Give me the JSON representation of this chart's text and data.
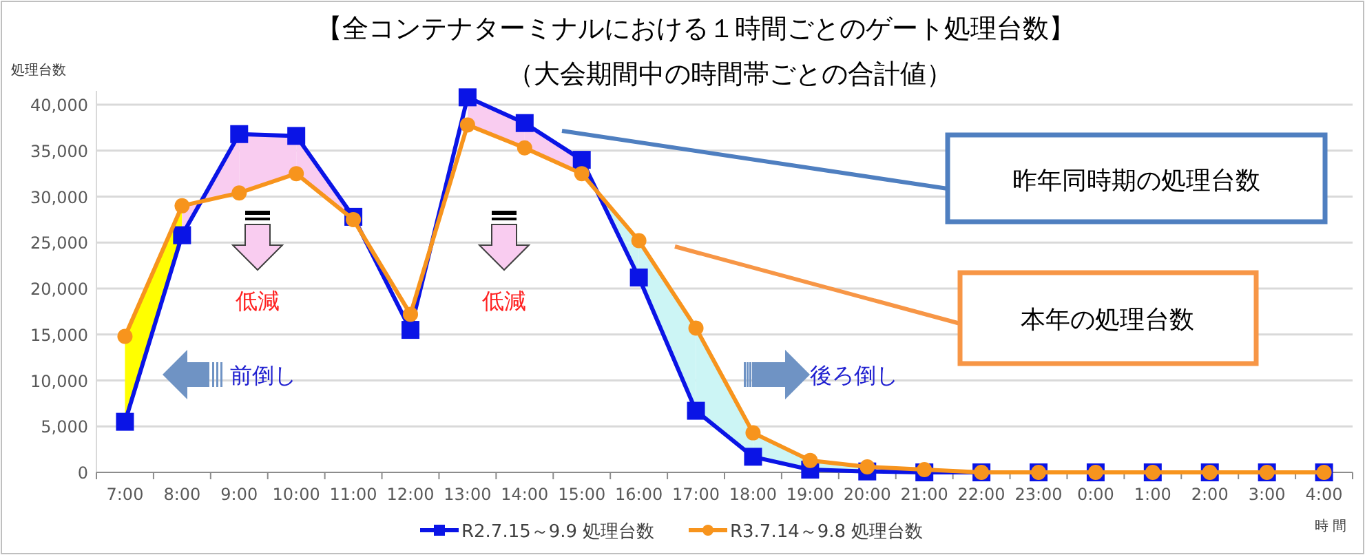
{
  "chart_data": {
    "type": "line",
    "title": "【全コンテナターミナルにおける１時間ごとのゲート処理台数】",
    "subtitle": "（大会期間中の時間帯ごとの合計値）",
    "ylabel": "処理台数",
    "xlabel": "時 間",
    "categories": [
      "7:00",
      "8:00",
      "9:00",
      "10:00",
      "11:00",
      "12:00",
      "13:00",
      "14:00",
      "15:00",
      "16:00",
      "17:00",
      "18:00",
      "19:00",
      "20:00",
      "21:00",
      "22:00",
      "23:00",
      "0:00",
      "1:00",
      "2:00",
      "3:00",
      "4:00"
    ],
    "series": [
      {
        "name": "R2.7.15～9.9 処理台数",
        "color": "#0a14e6",
        "marker": "square",
        "values": [
          5500,
          25800,
          36800,
          36600,
          27800,
          15500,
          40800,
          38000,
          34000,
          21200,
          6700,
          1700,
          300,
          100,
          0,
          0,
          0,
          0,
          0,
          0,
          0,
          0
        ]
      },
      {
        "name": "R3.7.14～9.8 処理台数",
        "color": "#f7941d",
        "marker": "circle",
        "values": [
          14800,
          29000,
          30400,
          32500,
          27500,
          17200,
          37800,
          35300,
          32500,
          25200,
          15700,
          4300,
          1300,
          600,
          300,
          0,
          0,
          0,
          0,
          0,
          0,
          0
        ]
      }
    ],
    "ylim": [
      0,
      41500
    ],
    "yticks": [
      {
        "value": 0,
        "label": "0"
      },
      {
        "value": 5000,
        "label": "5,000"
      },
      {
        "value": 10000,
        "label": "10,000"
      },
      {
        "value": 15000,
        "label": "15,000"
      },
      {
        "value": 20000,
        "label": "20,000"
      },
      {
        "value": 25000,
        "label": "25,000"
      },
      {
        "value": 30000,
        "label": "30,000"
      },
      {
        "value": 35000,
        "label": "35,000"
      },
      {
        "value": 40000,
        "label": "40,000"
      }
    ],
    "grid": "y",
    "legend": "bottom",
    "annotations": [
      "低減",
      "低減",
      "前倒し",
      "後ろ倒し",
      "昨年同時期の処理台数",
      "本年の処理台数"
    ]
  }
}
